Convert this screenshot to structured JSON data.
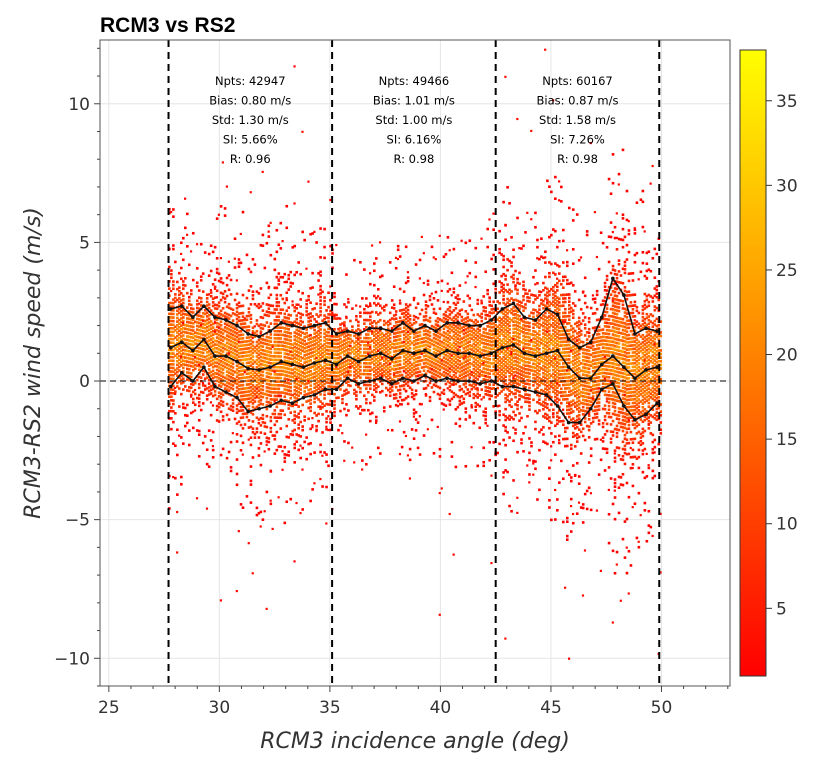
{
  "chart_data": {
    "type": "heatmap",
    "title": "RCM3 vs RS2",
    "xlabel": "RCM3 incidence angle (deg)",
    "ylabel": "RCM3-RS2 wind speed (m/s)",
    "xlim": [
      24.6,
      53.1
    ],
    "ylim": [
      -11.0,
      12.3
    ],
    "xticks": [
      25,
      30,
      35,
      40,
      45,
      50
    ],
    "xtick_labels": [
      "25",
      "30",
      "35",
      "40",
      "45",
      "50"
    ],
    "yticks": [
      -10,
      -5,
      0,
      5,
      10
    ],
    "ytick_labels": [
      "−10",
      "−5",
      "0",
      "5",
      "10"
    ],
    "grid": true,
    "zero_line": 0,
    "beam_boundaries": [
      27.7,
      35.1,
      42.5,
      49.9
    ],
    "colorbar": {
      "min": 1,
      "max": 38,
      "ticks": [
        5,
        10,
        15,
        20,
        25,
        30,
        35
      ],
      "tick_labels": [
        "5",
        "10",
        "15",
        "20",
        "25",
        "30",
        "35"
      ],
      "colormap": "autumn (red to yellow)"
    },
    "stats": [
      {
        "lines": [
          "Npts: 42947",
          "Bias: 0.80 m/s",
          "Std: 1.30 m/s",
          "SI: 5.66%",
          "R: 0.96"
        ]
      },
      {
        "lines": [
          "Npts: 49466",
          "Bias: 1.01 m/s",
          "Std: 1.00 m/s",
          "SI: 6.16%",
          "R: 0.98"
        ]
      },
      {
        "lines": [
          "Npts: 60167",
          "Bias: 0.87 m/s",
          "Std: 1.58 m/s",
          "SI: 7.26%",
          "R: 0.98"
        ]
      }
    ],
    "mean_line": {
      "x": [
        27.8,
        28.3,
        28.8,
        29.3,
        29.8,
        30.3,
        30.8,
        31.3,
        31.8,
        32.3,
        32.8,
        33.3,
        33.8,
        34.3,
        34.8,
        35.3,
        35.8,
        36.3,
        36.8,
        37.3,
        37.8,
        38.3,
        38.8,
        39.3,
        39.8,
        40.3,
        40.8,
        41.3,
        41.8,
        42.3,
        42.8,
        43.3,
        43.8,
        44.3,
        44.8,
        45.3,
        45.8,
        46.3,
        46.8,
        47.3,
        47.8,
        48.3,
        48.8,
        49.3,
        49.8
      ],
      "y": [
        1.2,
        1.4,
        1.1,
        1.5,
        0.9,
        0.9,
        0.7,
        0.45,
        0.4,
        0.5,
        0.7,
        0.6,
        0.5,
        0.65,
        0.75,
        0.6,
        0.9,
        0.7,
        0.9,
        1.0,
        0.8,
        1.1,
        1.0,
        1.1,
        0.9,
        1.1,
        1.0,
        1.0,
        0.9,
        1.0,
        1.2,
        1.3,
        1.0,
        0.9,
        1.0,
        1.1,
        0.5,
        0.1,
        0.1,
        0.6,
        0.9,
        0.5,
        0.1,
        0.4,
        0.5
      ]
    },
    "upper_line": {
      "x": [
        27.8,
        28.3,
        28.8,
        29.3,
        29.8,
        30.3,
        30.8,
        31.3,
        31.8,
        32.3,
        32.8,
        33.3,
        33.8,
        34.3,
        34.8,
        35.3,
        35.8,
        36.3,
        36.8,
        37.3,
        37.8,
        38.3,
        38.8,
        39.3,
        39.8,
        40.3,
        40.8,
        41.3,
        41.8,
        42.3,
        42.8,
        43.3,
        43.8,
        44.3,
        44.8,
        45.3,
        45.8,
        46.3,
        46.8,
        47.3,
        47.8,
        48.3,
        48.8,
        49.3,
        49.8
      ],
      "y": [
        2.6,
        2.7,
        2.3,
        2.7,
        2.3,
        2.2,
        2.0,
        1.7,
        1.6,
        1.8,
        2.1,
        2.0,
        1.9,
        2.0,
        2.1,
        1.7,
        1.8,
        1.7,
        1.9,
        1.9,
        1.8,
        2.1,
        1.8,
        2.0,
        1.8,
        2.1,
        2.1,
        2.0,
        2.0,
        2.2,
        2.6,
        2.8,
        2.3,
        2.2,
        2.6,
        2.4,
        1.5,
        1.2,
        1.4,
        2.3,
        3.7,
        3.1,
        1.7,
        1.9,
        1.8
      ]
    },
    "lower_line": {
      "x": [
        27.8,
        28.3,
        28.8,
        29.3,
        29.8,
        30.3,
        30.8,
        31.3,
        31.8,
        32.3,
        32.8,
        33.3,
        33.8,
        34.3,
        34.8,
        35.3,
        35.8,
        36.3,
        36.8,
        37.3,
        37.8,
        38.3,
        38.8,
        39.3,
        39.8,
        40.3,
        40.8,
        41.3,
        41.8,
        42.3,
        42.8,
        43.3,
        43.8,
        44.3,
        44.8,
        45.3,
        45.8,
        46.3,
        46.8,
        47.3,
        47.8,
        48.3,
        48.8,
        49.3,
        49.8
      ],
      "y": [
        -0.2,
        0.3,
        0.0,
        0.5,
        -0.2,
        -0.4,
        -0.6,
        -1.1,
        -1.0,
        -0.9,
        -0.7,
        -0.8,
        -0.6,
        -0.5,
        -0.3,
        -0.3,
        0.1,
        -0.1,
        0.0,
        0.1,
        -0.1,
        0.1,
        0.0,
        0.2,
        0.0,
        0.1,
        0.0,
        0.0,
        -0.1,
        0.0,
        -0.2,
        -0.2,
        -0.3,
        -0.4,
        -0.5,
        -0.9,
        -1.5,
        -1.5,
        -1.0,
        -0.3,
        -0.1,
        -0.9,
        -1.4,
        -1.2,
        -0.8
      ]
    }
  }
}
